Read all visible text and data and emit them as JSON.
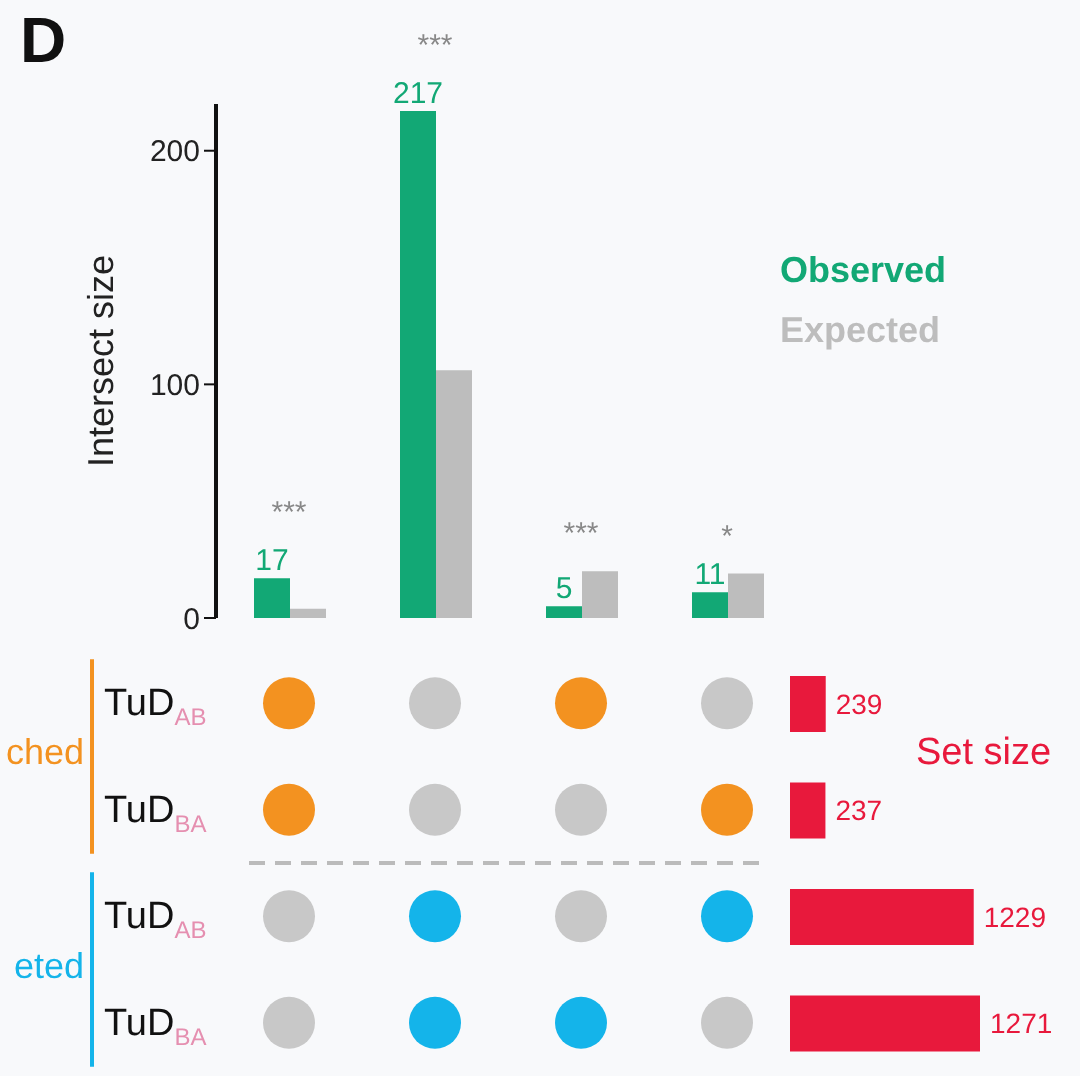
{
  "chart_data": [
    {
      "type": "bar",
      "title": "D",
      "ylabel": "Intersect size",
      "categories": [
        null,
        null,
        null,
        null
      ],
      "series": [
        {
          "name": "Observed",
          "color": "#12a875",
          "values": [
            17,
            217,
            5,
            11
          ],
          "value_labels": [
            "17",
            "217",
            "5",
            "11"
          ]
        },
        {
          "name": "Expected",
          "color": "#bdbdbd",
          "values": [
            4,
            106,
            20,
            19
          ]
        }
      ],
      "ylim": [
        0,
        220
      ],
      "yticks": [
        0,
        100,
        200
      ],
      "grid": false,
      "legend": "right",
      "tick_labels": "y",
      "annotations": [
        "***",
        "***",
        "***",
        "*"
      ]
    },
    {
      "type": "bar",
      "orientation": "horizontal",
      "title": "Set size",
      "categories": [
        "TuD$_{AB}$",
        "TuD$_{BA}$",
        "TuD$_{AB}$",
        "TuD$_{BA}$"
      ],
      "values": [
        239,
        237,
        1229,
        1271
      ],
      "color": "#e8193c",
      "data_labels": true,
      "tick_labels": "y",
      "grid": false,
      "annotations": [
        "ched",
        "eted"
      ]
    }
  ]
}
